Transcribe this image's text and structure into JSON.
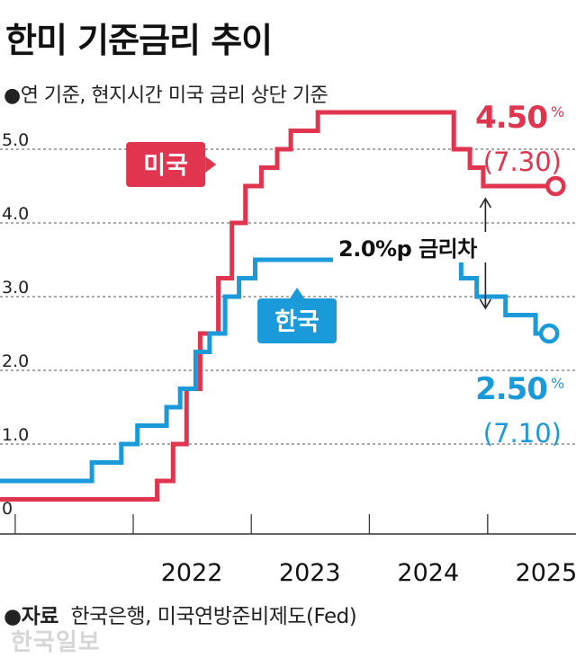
{
  "title": "한미 기준금리 추이",
  "subtitle": "●연 기준, 현지시간 미국 금리 상단 기준",
  "source": {
    "label": "●자료",
    "text": "한국은행, 미국연방준비제도(Fed)"
  },
  "watermark": "한국일보",
  "gap_label": "2.0%p 금리차",
  "chart_data": {
    "type": "line",
    "step": true,
    "x_unit": "date",
    "xlim": [
      "2020-11-15",
      "2025-10-01"
    ],
    "ylim": [
      0,
      5.5
    ],
    "y_ticks": [
      {
        "value": 0,
        "label": "0"
      },
      {
        "value": 1,
        "label": "1.0"
      },
      {
        "value": 2,
        "label": "2.0"
      },
      {
        "value": 3,
        "label": "3.0"
      },
      {
        "value": 4,
        "label": "4.0"
      },
      {
        "value": 5,
        "label": "5.0"
      }
    ],
    "x_ticks": [
      "2022",
      "2023",
      "2024",
      "2025"
    ],
    "grid": "horizontal-dashed",
    "series": [
      {
        "name": "미국",
        "color": "#e0344f",
        "end_value": "4.50",
        "end_unit": "%",
        "end_date": "(7.30)",
        "points": [
          [
            "2020-11-15",
            0.25
          ],
          [
            "2022-03-16",
            0.5
          ],
          [
            "2022-05-04",
            1.0
          ],
          [
            "2022-06-15",
            1.75
          ],
          [
            "2022-07-27",
            2.5
          ],
          [
            "2022-09-21",
            3.25
          ],
          [
            "2022-11-02",
            4.0
          ],
          [
            "2022-12-14",
            4.5
          ],
          [
            "2023-02-01",
            4.75
          ],
          [
            "2023-03-22",
            5.0
          ],
          [
            "2023-05-03",
            5.25
          ],
          [
            "2023-07-26",
            5.5
          ],
          [
            "2024-09-18",
            5.0
          ],
          [
            "2024-11-07",
            4.75
          ],
          [
            "2024-12-18",
            4.5
          ],
          [
            "2025-07-30",
            4.5
          ]
        ]
      },
      {
        "name": "한국",
        "color": "#1a9ad9",
        "end_value": "2.50",
        "end_unit": "%",
        "end_date": "(7.10)",
        "points": [
          [
            "2020-11-15",
            0.5
          ],
          [
            "2021-08-26",
            0.75
          ],
          [
            "2021-11-25",
            1.0
          ],
          [
            "2022-01-14",
            1.25
          ],
          [
            "2022-04-14",
            1.5
          ],
          [
            "2022-05-26",
            1.75
          ],
          [
            "2022-07-13",
            2.25
          ],
          [
            "2022-08-25",
            2.5
          ],
          [
            "2022-10-12",
            3.0
          ],
          [
            "2022-11-24",
            3.25
          ],
          [
            "2023-01-13",
            3.5
          ],
          [
            "2024-10-11",
            3.25
          ],
          [
            "2024-11-28",
            3.0
          ],
          [
            "2025-02-25",
            2.75
          ],
          [
            "2025-05-29",
            2.5
          ],
          [
            "2025-07-10",
            2.5
          ]
        ]
      }
    ]
  }
}
